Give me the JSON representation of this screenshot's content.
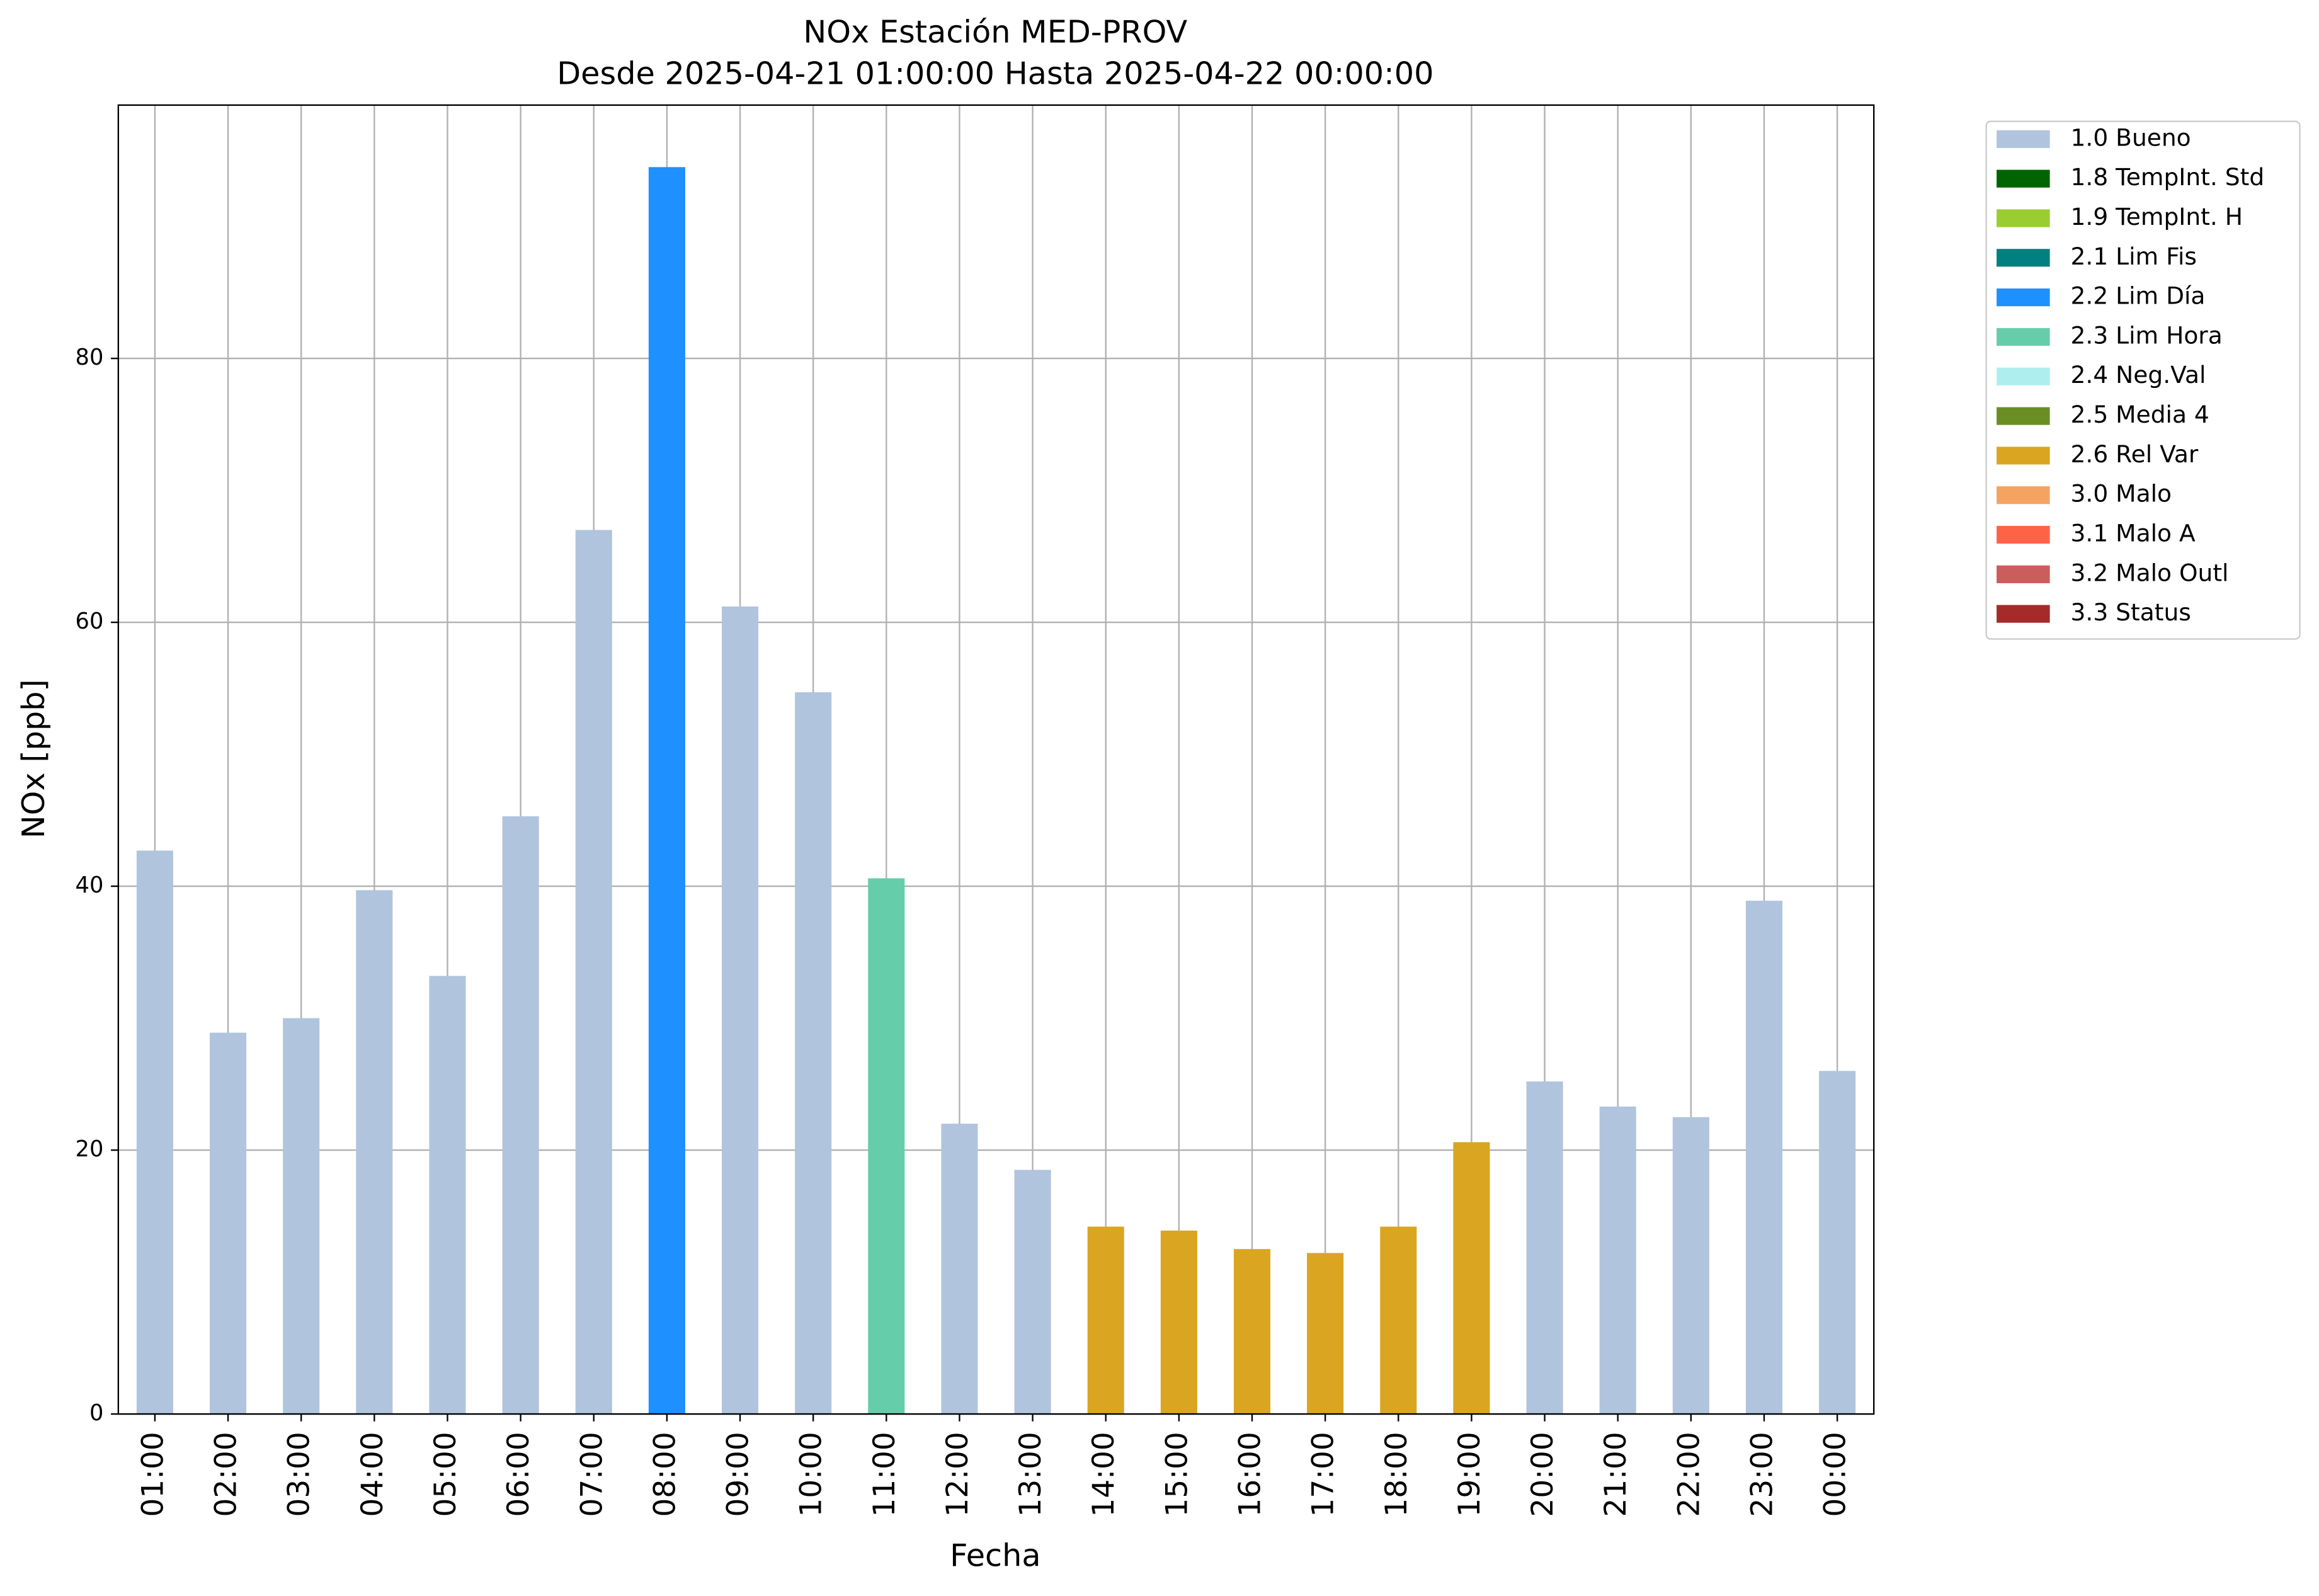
{
  "chart_data": {
    "type": "bar",
    "stacked": true,
    "title": "NOx Estación MED-PROV",
    "subtitle": "Desde 2025-04-21 01:00:00 Hasta 2025-04-22 00:00:00",
    "xlabel": "Fecha",
    "ylabel": "NOx [ppb]",
    "categories": [
      "01:00",
      "02:00",
      "03:00",
      "04:00",
      "05:00",
      "06:00",
      "07:00",
      "08:00",
      "09:00",
      "10:00",
      "11:00",
      "12:00",
      "13:00",
      "14:00",
      "15:00",
      "16:00",
      "17:00",
      "18:00",
      "19:00",
      "20:00",
      "21:00",
      "22:00",
      "23:00",
      "00:00"
    ],
    "series": [
      {
        "name": "1.0 Bueno",
        "color": "#b0c4de",
        "values": [
          42.7,
          28.9,
          30.0,
          39.7,
          33.2,
          45.3,
          67.0,
          null,
          61.2,
          54.7,
          null,
          22.0,
          18.5,
          null,
          null,
          null,
          null,
          null,
          null,
          25.2,
          23.3,
          22.5,
          38.9,
          26.0
        ]
      },
      {
        "name": "1.8 TempInt. Std",
        "color": "#006400",
        "values": [
          null,
          null,
          null,
          null,
          null,
          null,
          null,
          null,
          null,
          null,
          null,
          null,
          null,
          null,
          null,
          null,
          null,
          null,
          null,
          null,
          null,
          null,
          null,
          null
        ]
      },
      {
        "name": "1.9 TempInt. H",
        "color": "#9acd32",
        "values": [
          null,
          null,
          null,
          null,
          null,
          null,
          null,
          null,
          null,
          null,
          null,
          null,
          null,
          null,
          null,
          null,
          null,
          null,
          null,
          null,
          null,
          null,
          null,
          null
        ]
      },
      {
        "name": "2.1 Lim Fis",
        "color": "#008080",
        "values": [
          null,
          null,
          null,
          null,
          null,
          null,
          null,
          null,
          null,
          null,
          null,
          null,
          null,
          null,
          null,
          null,
          null,
          null,
          null,
          null,
          null,
          null,
          null,
          null
        ]
      },
      {
        "name": "2.2 Lim Día",
        "color": "#1e90ff",
        "values": [
          null,
          null,
          null,
          null,
          null,
          null,
          null,
          94.5,
          null,
          null,
          null,
          null,
          null,
          null,
          null,
          null,
          null,
          null,
          null,
          null,
          null,
          null,
          null,
          null
        ]
      },
      {
        "name": "2.3 Lim Hora",
        "color": "#66cdaa",
        "values": [
          null,
          null,
          null,
          null,
          null,
          null,
          null,
          null,
          null,
          null,
          40.6,
          null,
          null,
          null,
          null,
          null,
          null,
          null,
          null,
          null,
          null,
          null,
          null,
          null
        ]
      },
      {
        "name": "2.4 Neg.Val",
        "color": "#afeeee",
        "values": [
          null,
          null,
          null,
          null,
          null,
          null,
          null,
          null,
          null,
          null,
          null,
          null,
          null,
          null,
          null,
          null,
          null,
          null,
          null,
          null,
          null,
          null,
          null,
          null
        ]
      },
      {
        "name": "2.5 Media 4",
        "color": "#6b8e23",
        "values": [
          null,
          null,
          null,
          null,
          null,
          null,
          null,
          null,
          null,
          null,
          null,
          null,
          null,
          null,
          null,
          null,
          null,
          null,
          null,
          null,
          null,
          null,
          null,
          null
        ]
      },
      {
        "name": "2.6 Rel Var",
        "color": "#daa520",
        "values": [
          null,
          null,
          null,
          null,
          null,
          null,
          null,
          null,
          null,
          null,
          null,
          null,
          null,
          14.2,
          13.9,
          12.5,
          12.2,
          14.2,
          20.6,
          null,
          null,
          null,
          null,
          null
        ]
      },
      {
        "name": "3.0 Malo",
        "color": "#f4a460",
        "values": [
          null,
          null,
          null,
          null,
          null,
          null,
          null,
          null,
          null,
          null,
          null,
          null,
          null,
          null,
          null,
          null,
          null,
          null,
          null,
          null,
          null,
          null,
          null,
          null
        ]
      },
      {
        "name": "3.1 Malo A",
        "color": "#ff6347",
        "values": [
          null,
          null,
          null,
          null,
          null,
          null,
          null,
          null,
          null,
          null,
          null,
          null,
          null,
          null,
          null,
          null,
          null,
          null,
          null,
          null,
          null,
          null,
          null,
          null
        ]
      },
      {
        "name": "3.2 Malo Outl",
        "color": "#cd5c5c",
        "values": [
          null,
          null,
          null,
          null,
          null,
          null,
          null,
          null,
          null,
          null,
          null,
          null,
          null,
          null,
          null,
          null,
          null,
          null,
          null,
          null,
          null,
          null,
          null,
          null
        ]
      },
      {
        "name": "3.3 Status",
        "color": "#a52a2a",
        "values": [
          null,
          null,
          null,
          null,
          null,
          null,
          null,
          null,
          null,
          null,
          null,
          null,
          null,
          null,
          null,
          null,
          null,
          null,
          null,
          null,
          null,
          null,
          null,
          null
        ]
      }
    ],
    "ylim": [
      0,
      99.2
    ],
    "yticks": [
      0,
      20,
      40,
      60,
      80
    ],
    "grid": true,
    "legend": "outside-upper-right"
  }
}
